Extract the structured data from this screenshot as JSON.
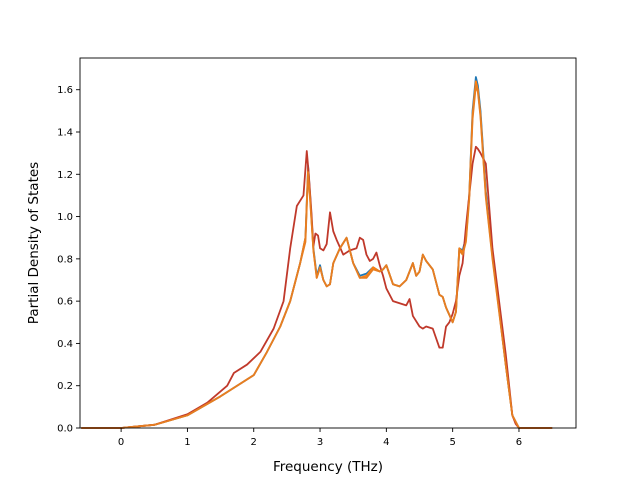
{
  "chart_data": {
    "type": "line",
    "title": "",
    "xlabel": "Frequency (THz)",
    "ylabel": "Partial Density of States",
    "xlim": [
      -0.62,
      6.86
    ],
    "ylim": [
      0.0,
      1.75
    ],
    "xticks": [
      0,
      1,
      2,
      3,
      4,
      5,
      6
    ],
    "yticks": [
      0.0,
      0.2,
      0.4,
      0.6,
      0.8,
      1.0,
      1.2,
      1.4,
      1.6
    ],
    "xtick_labels": [
      "0",
      "1",
      "2",
      "3",
      "4",
      "5",
      "6"
    ],
    "ytick_labels": [
      "0.0",
      "0.2",
      "0.4",
      "0.6",
      "0.8",
      "1.0",
      "1.2",
      "1.4",
      "1.6"
    ],
    "grid": false,
    "legend": "none",
    "series": [
      {
        "color": "#1f77b4",
        "x": [
          -0.6,
          0.0,
          0.5,
          1.0,
          1.5,
          2.0,
          2.2,
          2.4,
          2.55,
          2.7,
          2.78,
          2.82,
          2.85,
          2.9,
          2.95,
          3.0,
          3.05,
          3.1,
          3.15,
          3.2,
          3.3,
          3.4,
          3.5,
          3.6,
          3.7,
          3.8,
          3.9,
          3.95,
          4.0,
          4.1,
          4.2,
          4.3,
          4.4,
          4.45,
          4.5,
          4.55,
          4.6,
          4.7,
          4.8,
          4.85,
          4.9,
          5.0,
          5.05,
          5.1,
          5.15,
          5.2,
          5.25,
          5.3,
          5.35,
          5.38,
          5.42,
          5.5,
          5.6,
          5.7,
          5.8,
          5.9,
          5.95,
          6.0,
          6.5
        ],
        "y": [
          0.0,
          0.0,
          0.015,
          0.06,
          0.15,
          0.25,
          0.36,
          0.48,
          0.6,
          0.78,
          0.9,
          1.24,
          1.1,
          0.85,
          0.72,
          0.77,
          0.7,
          0.67,
          0.68,
          0.78,
          0.85,
          0.9,
          0.78,
          0.72,
          0.73,
          0.76,
          0.74,
          0.75,
          0.77,
          0.68,
          0.67,
          0.7,
          0.78,
          0.72,
          0.74,
          0.82,
          0.79,
          0.75,
          0.63,
          0.62,
          0.57,
          0.5,
          0.55,
          0.85,
          0.84,
          0.9,
          1.1,
          1.5,
          1.66,
          1.62,
          1.5,
          1.12,
          0.82,
          0.56,
          0.3,
          0.06,
          0.03,
          0.0,
          0.0
        ]
      },
      {
        "color": "#ff7f0e",
        "x": [
          -0.6,
          0.0,
          0.5,
          1.0,
          1.5,
          2.0,
          2.2,
          2.4,
          2.55,
          2.7,
          2.78,
          2.82,
          2.85,
          2.9,
          2.95,
          3.0,
          3.05,
          3.1,
          3.15,
          3.2,
          3.3,
          3.4,
          3.5,
          3.6,
          3.7,
          3.8,
          3.9,
          3.95,
          4.0,
          4.1,
          4.2,
          4.3,
          4.4,
          4.45,
          4.5,
          4.55,
          4.6,
          4.7,
          4.8,
          4.85,
          4.9,
          5.0,
          5.05,
          5.1,
          5.15,
          5.2,
          5.25,
          5.3,
          5.35,
          5.38,
          5.42,
          5.5,
          5.6,
          5.7,
          5.8,
          5.9,
          5.95,
          6.0,
          6.5
        ],
        "y": [
          0.0,
          0.0,
          0.015,
          0.06,
          0.15,
          0.25,
          0.36,
          0.48,
          0.6,
          0.78,
          0.9,
          1.23,
          1.09,
          0.84,
          0.71,
          0.76,
          0.7,
          0.67,
          0.68,
          0.78,
          0.85,
          0.9,
          0.78,
          0.71,
          0.72,
          0.76,
          0.74,
          0.75,
          0.77,
          0.68,
          0.67,
          0.7,
          0.78,
          0.72,
          0.74,
          0.82,
          0.79,
          0.75,
          0.63,
          0.62,
          0.57,
          0.5,
          0.55,
          0.85,
          0.83,
          0.89,
          1.1,
          1.48,
          1.64,
          1.6,
          1.48,
          1.1,
          0.81,
          0.56,
          0.3,
          0.06,
          0.03,
          0.0,
          0.0
        ]
      },
      {
        "color": "#c0392b",
        "x": [
          -0.6,
          0.0,
          0.5,
          1.0,
          1.3,
          1.6,
          1.7,
          1.9,
          2.1,
          2.3,
          2.45,
          2.55,
          2.65,
          2.75,
          2.8,
          2.83,
          2.87,
          2.9,
          2.93,
          2.97,
          3.0,
          3.05,
          3.1,
          3.15,
          3.2,
          3.25,
          3.35,
          3.45,
          3.55,
          3.6,
          3.65,
          3.7,
          3.75,
          3.8,
          3.85,
          3.9,
          3.95,
          4.0,
          4.1,
          4.2,
          4.3,
          4.35,
          4.4,
          4.5,
          4.55,
          4.6,
          4.7,
          4.8,
          4.85,
          4.9,
          4.95,
          5.0,
          5.05,
          5.1,
          5.15,
          5.2,
          5.3,
          5.35,
          5.38,
          5.42,
          5.5,
          5.6,
          5.7,
          5.8,
          5.9,
          5.95,
          6.0,
          6.5
        ],
        "y": [
          0.0,
          0.0,
          0.015,
          0.065,
          0.12,
          0.2,
          0.26,
          0.3,
          0.36,
          0.47,
          0.6,
          0.85,
          1.05,
          1.1,
          1.31,
          1.2,
          1.02,
          0.86,
          0.92,
          0.91,
          0.85,
          0.84,
          0.87,
          1.02,
          0.93,
          0.89,
          0.82,
          0.84,
          0.85,
          0.9,
          0.89,
          0.82,
          0.79,
          0.8,
          0.83,
          0.77,
          0.72,
          0.66,
          0.6,
          0.59,
          0.58,
          0.61,
          0.53,
          0.48,
          0.47,
          0.48,
          0.47,
          0.38,
          0.38,
          0.48,
          0.5,
          0.54,
          0.6,
          0.72,
          0.78,
          0.95,
          1.25,
          1.33,
          1.32,
          1.3,
          1.25,
          0.85,
          0.6,
          0.35,
          0.06,
          0.02,
          0.0,
          0.0
        ]
      },
      {
        "color": "#e67e22",
        "x": [
          -0.6,
          0.0,
          0.5,
          1.0,
          1.5,
          2.0,
          2.2,
          2.4,
          2.55,
          2.7,
          2.78,
          2.82,
          2.85,
          2.9,
          2.95,
          3.0,
          3.05,
          3.1,
          3.15,
          3.2,
          3.3,
          3.4,
          3.5,
          3.6,
          3.7,
          3.8,
          3.9,
          3.95,
          4.0,
          4.1,
          4.2,
          4.3,
          4.4,
          4.45,
          4.5,
          4.55,
          4.6,
          4.7,
          4.8,
          4.85,
          4.9,
          5.0,
          5.05,
          5.1,
          5.15,
          5.2,
          5.25,
          5.3,
          5.35,
          5.38,
          5.42,
          5.5,
          5.6,
          5.7,
          5.8,
          5.9,
          5.95,
          6.0,
          6.5
        ],
        "y": [
          0.0,
          0.0,
          0.015,
          0.06,
          0.15,
          0.25,
          0.36,
          0.48,
          0.6,
          0.78,
          0.88,
          1.21,
          1.08,
          0.84,
          0.71,
          0.76,
          0.7,
          0.67,
          0.68,
          0.78,
          0.85,
          0.9,
          0.78,
          0.71,
          0.71,
          0.75,
          0.74,
          0.75,
          0.77,
          0.68,
          0.67,
          0.7,
          0.78,
          0.72,
          0.74,
          0.82,
          0.79,
          0.75,
          0.63,
          0.62,
          0.57,
          0.5,
          0.55,
          0.84,
          0.82,
          0.88,
          1.08,
          1.46,
          1.62,
          1.59,
          1.47,
          1.09,
          0.8,
          0.55,
          0.3,
          0.06,
          0.03,
          0.0,
          0.0
        ]
      }
    ]
  }
}
